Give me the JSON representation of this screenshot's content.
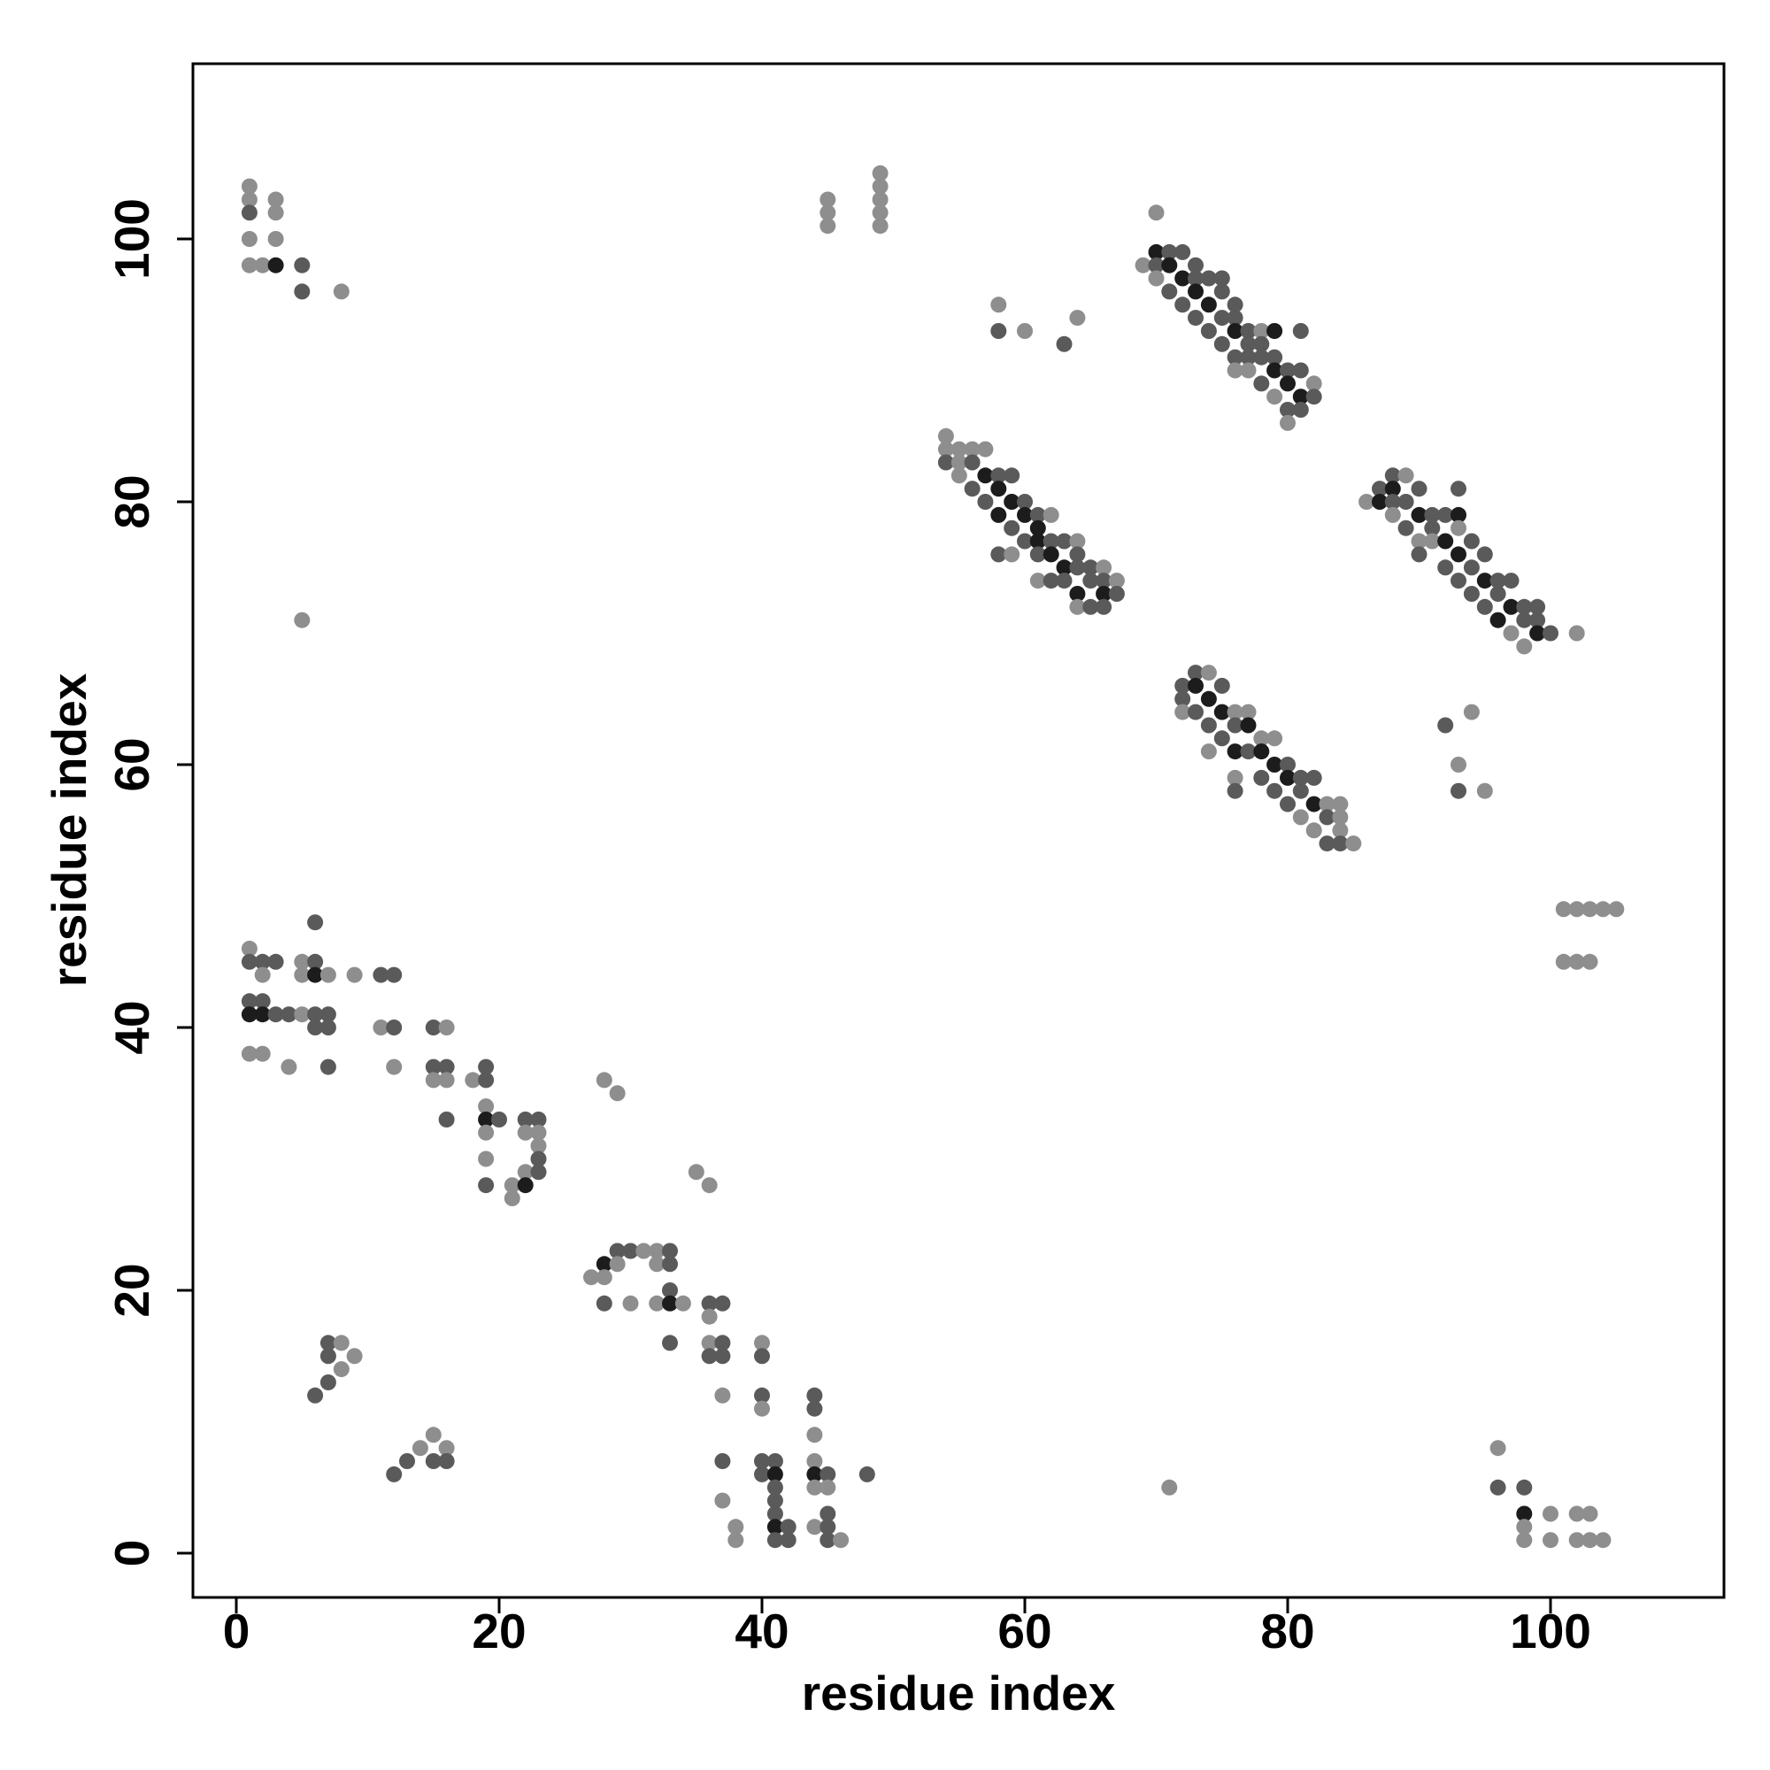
{
  "chart_data": {
    "type": "scatter",
    "title": "",
    "xlabel": "residue index",
    "ylabel": "residue index",
    "xlim": [
      -3.3,
      113
    ],
    "ylim": [
      -3.3,
      113
    ],
    "xticks": [
      0,
      20,
      40,
      60,
      80,
      100
    ],
    "yticks": [
      0,
      20,
      40,
      60,
      80,
      100
    ],
    "grid": false,
    "legend": "none",
    "point_color_scale": "darker grey = higher contact strength (1 light .. 3 dark)",
    "colors": {
      "light": "#8e8e8e",
      "mid": "#5a5a5a",
      "dark": "#1c1c1c",
      "frame": "#000000"
    },
    "points": [
      [
        1,
        104,
        1
      ],
      [
        1,
        103,
        1
      ],
      [
        1,
        102,
        2
      ],
      [
        1,
        100,
        1
      ],
      [
        1,
        98,
        1
      ],
      [
        2,
        98,
        1
      ],
      [
        3,
        103,
        1
      ],
      [
        3,
        102,
        1
      ],
      [
        3,
        100,
        1
      ],
      [
        3,
        98,
        3
      ],
      [
        5,
        98,
        2
      ],
      [
        5,
        96,
        2
      ],
      [
        8,
        96,
        1
      ],
      [
        5,
        71,
        1
      ],
      [
        45,
        103,
        1
      ],
      [
        45,
        102,
        1
      ],
      [
        45,
        101,
        1
      ],
      [
        49,
        105,
        1
      ],
      [
        49,
        104,
        1
      ],
      [
        49,
        103,
        1
      ],
      [
        49,
        102,
        1
      ],
      [
        49,
        101,
        1
      ],
      [
        70,
        102,
        1
      ],
      [
        69,
        98,
        1
      ],
      [
        70,
        99,
        3
      ],
      [
        70,
        98,
        2
      ],
      [
        70,
        97,
        1
      ],
      [
        71,
        99,
        2
      ],
      [
        71,
        98,
        3
      ],
      [
        71,
        96,
        2
      ],
      [
        72,
        99,
        2
      ],
      [
        72,
        97,
        3
      ],
      [
        72,
        95,
        2
      ],
      [
        73,
        98,
        2
      ],
      [
        73,
        97,
        2
      ],
      [
        73,
        96,
        3
      ],
      [
        73,
        94,
        2
      ],
      [
        74,
        97,
        2
      ],
      [
        74,
        95,
        3
      ],
      [
        74,
        93,
        2
      ],
      [
        75,
        97,
        2
      ],
      [
        75,
        96,
        2
      ],
      [
        75,
        94,
        2
      ],
      [
        75,
        92,
        2
      ],
      [
        76,
        95,
        2
      ],
      [
        76,
        94,
        2
      ],
      [
        76,
        93,
        3
      ],
      [
        76,
        91,
        2
      ],
      [
        76,
        90,
        1
      ],
      [
        77,
        93,
        2
      ],
      [
        77,
        92,
        2
      ],
      [
        77,
        91,
        2
      ],
      [
        77,
        90,
        1
      ],
      [
        78,
        93,
        1
      ],
      [
        78,
        92,
        2
      ],
      [
        78,
        91,
        2
      ],
      [
        78,
        89,
        2
      ],
      [
        79,
        93,
        3
      ],
      [
        79,
        91,
        2
      ],
      [
        79,
        90,
        3
      ],
      [
        79,
        88,
        1
      ],
      [
        80,
        90,
        2
      ],
      [
        80,
        89,
        3
      ],
      [
        80,
        87,
        2
      ],
      [
        80,
        86,
        1
      ],
      [
        81,
        93,
        2
      ],
      [
        81,
        90,
        2
      ],
      [
        81,
        88,
        3
      ],
      [
        81,
        87,
        2
      ],
      [
        82,
        89,
        1
      ],
      [
        82,
        88,
        2
      ],
      [
        58,
        95,
        1
      ],
      [
        58,
        93,
        2
      ],
      [
        60,
        93,
        1
      ],
      [
        63,
        92,
        2
      ],
      [
        64,
        94,
        1
      ],
      [
        54,
        85,
        1
      ],
      [
        54,
        84,
        1
      ],
      [
        54,
        83,
        2
      ],
      [
        55,
        84,
        1
      ],
      [
        55,
        83,
        1
      ],
      [
        55,
        82,
        1
      ],
      [
        56,
        84,
        1
      ],
      [
        56,
        83,
        2
      ],
      [
        56,
        81,
        2
      ],
      [
        57,
        84,
        1
      ],
      [
        57,
        82,
        3
      ],
      [
        57,
        80,
        2
      ],
      [
        58,
        82,
        2
      ],
      [
        58,
        81,
        3
      ],
      [
        58,
        79,
        3
      ],
      [
        58,
        76,
        2
      ],
      [
        59,
        82,
        2
      ],
      [
        59,
        80,
        3
      ],
      [
        59,
        78,
        2
      ],
      [
        59,
        76,
        1
      ],
      [
        60,
        80,
        2
      ],
      [
        60,
        79,
        3
      ],
      [
        60,
        77,
        2
      ],
      [
        61,
        79,
        2
      ],
      [
        61,
        78,
        3
      ],
      [
        61,
        77,
        3
      ],
      [
        61,
        76,
        2
      ],
      [
        61,
        74,
        1
      ],
      [
        62,
        79,
        1
      ],
      [
        62,
        77,
        2
      ],
      [
        62,
        76,
        3
      ],
      [
        62,
        74,
        2
      ],
      [
        63,
        77,
        2
      ],
      [
        63,
        75,
        3
      ],
      [
        63,
        74,
        2
      ],
      [
        64,
        77,
        1
      ],
      [
        64,
        76,
        2
      ],
      [
        64,
        75,
        2
      ],
      [
        64,
        73,
        3
      ],
      [
        64,
        72,
        1
      ],
      [
        65,
        75,
        2
      ],
      [
        65,
        74,
        2
      ],
      [
        65,
        72,
        2
      ],
      [
        66,
        75,
        1
      ],
      [
        66,
        74,
        2
      ],
      [
        66,
        73,
        3
      ],
      [
        66,
        72,
        2
      ],
      [
        67,
        74,
        1
      ],
      [
        67,
        73,
        2
      ],
      [
        86,
        80,
        1
      ],
      [
        87,
        81,
        2
      ],
      [
        87,
        80,
        3
      ],
      [
        88,
        82,
        2
      ],
      [
        88,
        81,
        3
      ],
      [
        88,
        80,
        2
      ],
      [
        88,
        79,
        1
      ],
      [
        89,
        82,
        1
      ],
      [
        89,
        80,
        2
      ],
      [
        89,
        78,
        2
      ],
      [
        90,
        81,
        2
      ],
      [
        90,
        79,
        3
      ],
      [
        90,
        77,
        1
      ],
      [
        90,
        76,
        2
      ],
      [
        91,
        79,
        2
      ],
      [
        91,
        78,
        2
      ],
      [
        91,
        77,
        1
      ],
      [
        92,
        79,
        2
      ],
      [
        92,
        77,
        3
      ],
      [
        92,
        75,
        2
      ],
      [
        93,
        81,
        2
      ],
      [
        93,
        79,
        3
      ],
      [
        93,
        78,
        1
      ],
      [
        93,
        76,
        3
      ],
      [
        93,
        74,
        2
      ],
      [
        94,
        77,
        2
      ],
      [
        94,
        75,
        2
      ],
      [
        94,
        73,
        2
      ],
      [
        95,
        76,
        2
      ],
      [
        95,
        74,
        3
      ],
      [
        95,
        72,
        2
      ],
      [
        96,
        74,
        2
      ],
      [
        96,
        73,
        2
      ],
      [
        96,
        71,
        3
      ],
      [
        97,
        74,
        2
      ],
      [
        97,
        72,
        3
      ],
      [
        97,
        70,
        1
      ],
      [
        98,
        72,
        2
      ],
      [
        98,
        71,
        2
      ],
      [
        98,
        69,
        1
      ],
      [
        99,
        72,
        2
      ],
      [
        99,
        71,
        2
      ],
      [
        99,
        70,
        3
      ],
      [
        100,
        70,
        2
      ],
      [
        102,
        70,
        1
      ],
      [
        92,
        63,
        2
      ],
      [
        94,
        64,
        1
      ],
      [
        93,
        60,
        1
      ],
      [
        93,
        58,
        2
      ],
      [
        95,
        58,
        1
      ],
      [
        71,
        5,
        1
      ],
      [
        72,
        66,
        2
      ],
      [
        72,
        65,
        2
      ],
      [
        72,
        64,
        1
      ],
      [
        73,
        67,
        2
      ],
      [
        73,
        66,
        3
      ],
      [
        73,
        64,
        2
      ],
      [
        74,
        67,
        1
      ],
      [
        74,
        65,
        3
      ],
      [
        74,
        63,
        2
      ],
      [
        74,
        61,
        1
      ],
      [
        75,
        66,
        2
      ],
      [
        75,
        64,
        3
      ],
      [
        75,
        62,
        2
      ],
      [
        76,
        64,
        1
      ],
      [
        76,
        63,
        2
      ],
      [
        76,
        61,
        3
      ],
      [
        76,
        59,
        1
      ],
      [
        76,
        58,
        2
      ],
      [
        77,
        64,
        1
      ],
      [
        77,
        63,
        3
      ],
      [
        77,
        61,
        2
      ],
      [
        78,
        62,
        1
      ],
      [
        78,
        61,
        3
      ],
      [
        78,
        59,
        2
      ],
      [
        79,
        62,
        1
      ],
      [
        79,
        60,
        3
      ],
      [
        79,
        58,
        2
      ],
      [
        80,
        60,
        2
      ],
      [
        80,
        59,
        3
      ],
      [
        80,
        57,
        2
      ],
      [
        81,
        59,
        2
      ],
      [
        81,
        58,
        2
      ],
      [
        81,
        56,
        1
      ],
      [
        82,
        59,
        2
      ],
      [
        82,
        57,
        3
      ],
      [
        82,
        55,
        1
      ],
      [
        83,
        57,
        1
      ],
      [
        83,
        56,
        2
      ],
      [
        83,
        54,
        2
      ],
      [
        84,
        57,
        1
      ],
      [
        84,
        56,
        1
      ],
      [
        84,
        55,
        1
      ],
      [
        84,
        54,
        2
      ],
      [
        85,
        54,
        1
      ],
      [
        101,
        49,
        1
      ],
      [
        102,
        49,
        1
      ],
      [
        103,
        49,
        1
      ],
      [
        104,
        49,
        1
      ],
      [
        105,
        49,
        1
      ],
      [
        101,
        45,
        1
      ],
      [
        102,
        45,
        1
      ],
      [
        103,
        45,
        1
      ],
      [
        1,
        46,
        1
      ],
      [
        1,
        45,
        2
      ],
      [
        2,
        45,
        2
      ],
      [
        2,
        44,
        1
      ],
      [
        3,
        45,
        2
      ],
      [
        1,
        42,
        2
      ],
      [
        2,
        42,
        2
      ],
      [
        1,
        41,
        3
      ],
      [
        2,
        41,
        3
      ],
      [
        3,
        41,
        2
      ],
      [
        4,
        41,
        2
      ],
      [
        5,
        41,
        1
      ],
      [
        6,
        41,
        2
      ],
      [
        7,
        41,
        2
      ],
      [
        6,
        40,
        2
      ],
      [
        7,
        40,
        2
      ],
      [
        1,
        38,
        1
      ],
      [
        2,
        38,
        1
      ],
      [
        4,
        37,
        1
      ],
      [
        7,
        37,
        2
      ],
      [
        6,
        48,
        2
      ],
      [
        5,
        45,
        1
      ],
      [
        6,
        45,
        2
      ],
      [
        5,
        44,
        1
      ],
      [
        6,
        44,
        3
      ],
      [
        7,
        44,
        1
      ],
      [
        9,
        44,
        1
      ],
      [
        11,
        44,
        2
      ],
      [
        12,
        44,
        2
      ],
      [
        11,
        40,
        1
      ],
      [
        12,
        40,
        2
      ],
      [
        12,
        37,
        1
      ],
      [
        15,
        40,
        2
      ],
      [
        16,
        40,
        1
      ],
      [
        15,
        37,
        2
      ],
      [
        16,
        37,
        2
      ],
      [
        15,
        36,
        1
      ],
      [
        16,
        36,
        1
      ],
      [
        16,
        33,
        2
      ],
      [
        18,
        36,
        1
      ],
      [
        19,
        37,
        2
      ],
      [
        19,
        36,
        2
      ],
      [
        19,
        34,
        1
      ],
      [
        19,
        33,
        3
      ],
      [
        20,
        33,
        2
      ],
      [
        19,
        32,
        1
      ],
      [
        19,
        30,
        1
      ],
      [
        19,
        28,
        2
      ],
      [
        21,
        28,
        1
      ],
      [
        21,
        27,
        1
      ],
      [
        22,
        33,
        2
      ],
      [
        23,
        33,
        2
      ],
      [
        22,
        32,
        1
      ],
      [
        23,
        32,
        1
      ],
      [
        23,
        31,
        1
      ],
      [
        23,
        30,
        2
      ],
      [
        22,
        29,
        1
      ],
      [
        23,
        29,
        2
      ],
      [
        22,
        28,
        3
      ],
      [
        28,
        36,
        1
      ],
      [
        29,
        35,
        1
      ],
      [
        35,
        29,
        1
      ],
      [
        36,
        28,
        1
      ],
      [
        27,
        21,
        1
      ],
      [
        28,
        22,
        3
      ],
      [
        28,
        21,
        1
      ],
      [
        29,
        23,
        2
      ],
      [
        29,
        22,
        1
      ],
      [
        30,
        23,
        2
      ],
      [
        31,
        23,
        1
      ],
      [
        32,
        23,
        1
      ],
      [
        32,
        22,
        1
      ],
      [
        33,
        23,
        2
      ],
      [
        33,
        22,
        2
      ],
      [
        33,
        20,
        2
      ],
      [
        28,
        19,
        2
      ],
      [
        30,
        19,
        1
      ],
      [
        32,
        19,
        1
      ],
      [
        33,
        19,
        3
      ],
      [
        34,
        19,
        1
      ],
      [
        33,
        16,
        2
      ],
      [
        36,
        19,
        2
      ],
      [
        37,
        19,
        2
      ],
      [
        36,
        18,
        1
      ],
      [
        36,
        16,
        1
      ],
      [
        37,
        16,
        2
      ],
      [
        36,
        15,
        2
      ],
      [
        37,
        15,
        2
      ],
      [
        40,
        16,
        1
      ],
      [
        40,
        15,
        2
      ],
      [
        7,
        16,
        2
      ],
      [
        8,
        16,
        1
      ],
      [
        7,
        15,
        2
      ],
      [
        9,
        15,
        1
      ],
      [
        8,
        14,
        1
      ],
      [
        7,
        13,
        2
      ],
      [
        6,
        12,
        2
      ],
      [
        12,
        6,
        2
      ],
      [
        13,
        7,
        2
      ],
      [
        14,
        8,
        1
      ],
      [
        15,
        9,
        1
      ],
      [
        15,
        7,
        2
      ],
      [
        16,
        8,
        1
      ],
      [
        16,
        7,
        2
      ],
      [
        37,
        12,
        1
      ],
      [
        40,
        12,
        2
      ],
      [
        40,
        11,
        1
      ],
      [
        44,
        12,
        2
      ],
      [
        44,
        11,
        2
      ],
      [
        44,
        9,
        1
      ],
      [
        37,
        7,
        2
      ],
      [
        37,
        4,
        1
      ],
      [
        38,
        2,
        1
      ],
      [
        38,
        1,
        1
      ],
      [
        40,
        7,
        2
      ],
      [
        40,
        6,
        2
      ],
      [
        41,
        7,
        2
      ],
      [
        41,
        6,
        3
      ],
      [
        41,
        5,
        2
      ],
      [
        41,
        4,
        2
      ],
      [
        41,
        3,
        2
      ],
      [
        41,
        2,
        3
      ],
      [
        41,
        1,
        2
      ],
      [
        42,
        2,
        2
      ],
      [
        42,
        1,
        2
      ],
      [
        44,
        7,
        1
      ],
      [
        44,
        6,
        3
      ],
      [
        45,
        6,
        2
      ],
      [
        44,
        5,
        1
      ],
      [
        45,
        5,
        1
      ],
      [
        45,
        3,
        2
      ],
      [
        44,
        2,
        1
      ],
      [
        45,
        2,
        2
      ],
      [
        45,
        1,
        2
      ],
      [
        46,
        1,
        1
      ],
      [
        48,
        6,
        2
      ],
      [
        96,
        8,
        1
      ],
      [
        96,
        5,
        2
      ],
      [
        98,
        5,
        2
      ],
      [
        98,
        3,
        3
      ],
      [
        98,
        2,
        1
      ],
      [
        98,
        1,
        1
      ],
      [
        100,
        3,
        1
      ],
      [
        100,
        1,
        1
      ],
      [
        102,
        3,
        1
      ],
      [
        103,
        3,
        1
      ],
      [
        102,
        1,
        1
      ],
      [
        103,
        1,
        1
      ],
      [
        104,
        1,
        1
      ]
    ]
  }
}
